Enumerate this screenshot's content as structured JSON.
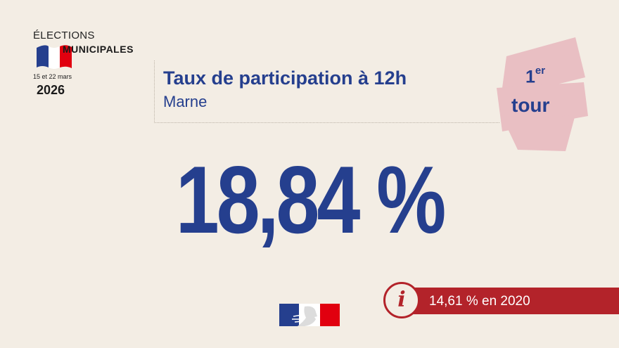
{
  "logo": {
    "line1": "ÉLECTIONS",
    "line2": "MUNICIPALES",
    "dates": "15 et 22 mars",
    "year": "2026"
  },
  "header": {
    "title": "Taux de participation à 12h",
    "subtitle": "Marne"
  },
  "round": {
    "number": "1",
    "suffix": "er",
    "label": "tour"
  },
  "main": {
    "value": "18,84 %"
  },
  "info": {
    "icon": "info-icon",
    "text": "14,61 % en 2020"
  },
  "colors": {
    "background": "#f3ede4",
    "blue": "#253f8e",
    "red": "#b3232a",
    "pink": "#e9bfc3"
  }
}
